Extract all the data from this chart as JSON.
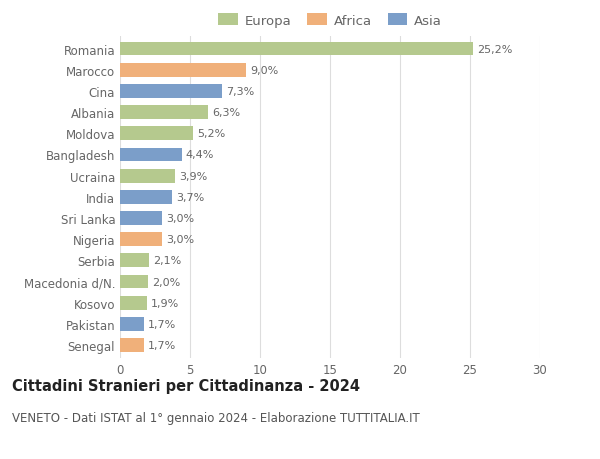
{
  "countries": [
    "Romania",
    "Marocco",
    "Cina",
    "Albania",
    "Moldova",
    "Bangladesh",
    "Ucraina",
    "India",
    "Sri Lanka",
    "Nigeria",
    "Serbia",
    "Macedonia d/N.",
    "Kosovo",
    "Pakistan",
    "Senegal"
  ],
  "values": [
    25.2,
    9.0,
    7.3,
    6.3,
    5.2,
    4.4,
    3.9,
    3.7,
    3.0,
    3.0,
    2.1,
    2.0,
    1.9,
    1.7,
    1.7
  ],
  "labels": [
    "25,2%",
    "9,0%",
    "7,3%",
    "6,3%",
    "5,2%",
    "4,4%",
    "3,9%",
    "3,7%",
    "3,0%",
    "3,0%",
    "2,1%",
    "2,0%",
    "1,9%",
    "1,7%",
    "1,7%"
  ],
  "continents": [
    "Europa",
    "Africa",
    "Asia",
    "Europa",
    "Europa",
    "Asia",
    "Europa",
    "Asia",
    "Asia",
    "Africa",
    "Europa",
    "Europa",
    "Europa",
    "Asia",
    "Africa"
  ],
  "colors": {
    "Europa": "#b5c98e",
    "Africa": "#f0b07a",
    "Asia": "#7b9ec9"
  },
  "legend_labels": [
    "Europa",
    "Africa",
    "Asia"
  ],
  "title": "Cittadini Stranieri per Cittadinanza - 2024",
  "subtitle": "VENETO - Dati ISTAT al 1° gennaio 2024 - Elaborazione TUTTITALIA.IT",
  "xlim": [
    0,
    30
  ],
  "xticks": [
    0,
    5,
    10,
    15,
    20,
    25,
    30
  ],
  "background_color": "#ffffff",
  "grid_color": "#dddddd",
  "bar_height": 0.65,
  "title_fontsize": 10.5,
  "subtitle_fontsize": 8.5,
  "label_fontsize": 8,
  "tick_fontsize": 8.5,
  "legend_fontsize": 9.5
}
